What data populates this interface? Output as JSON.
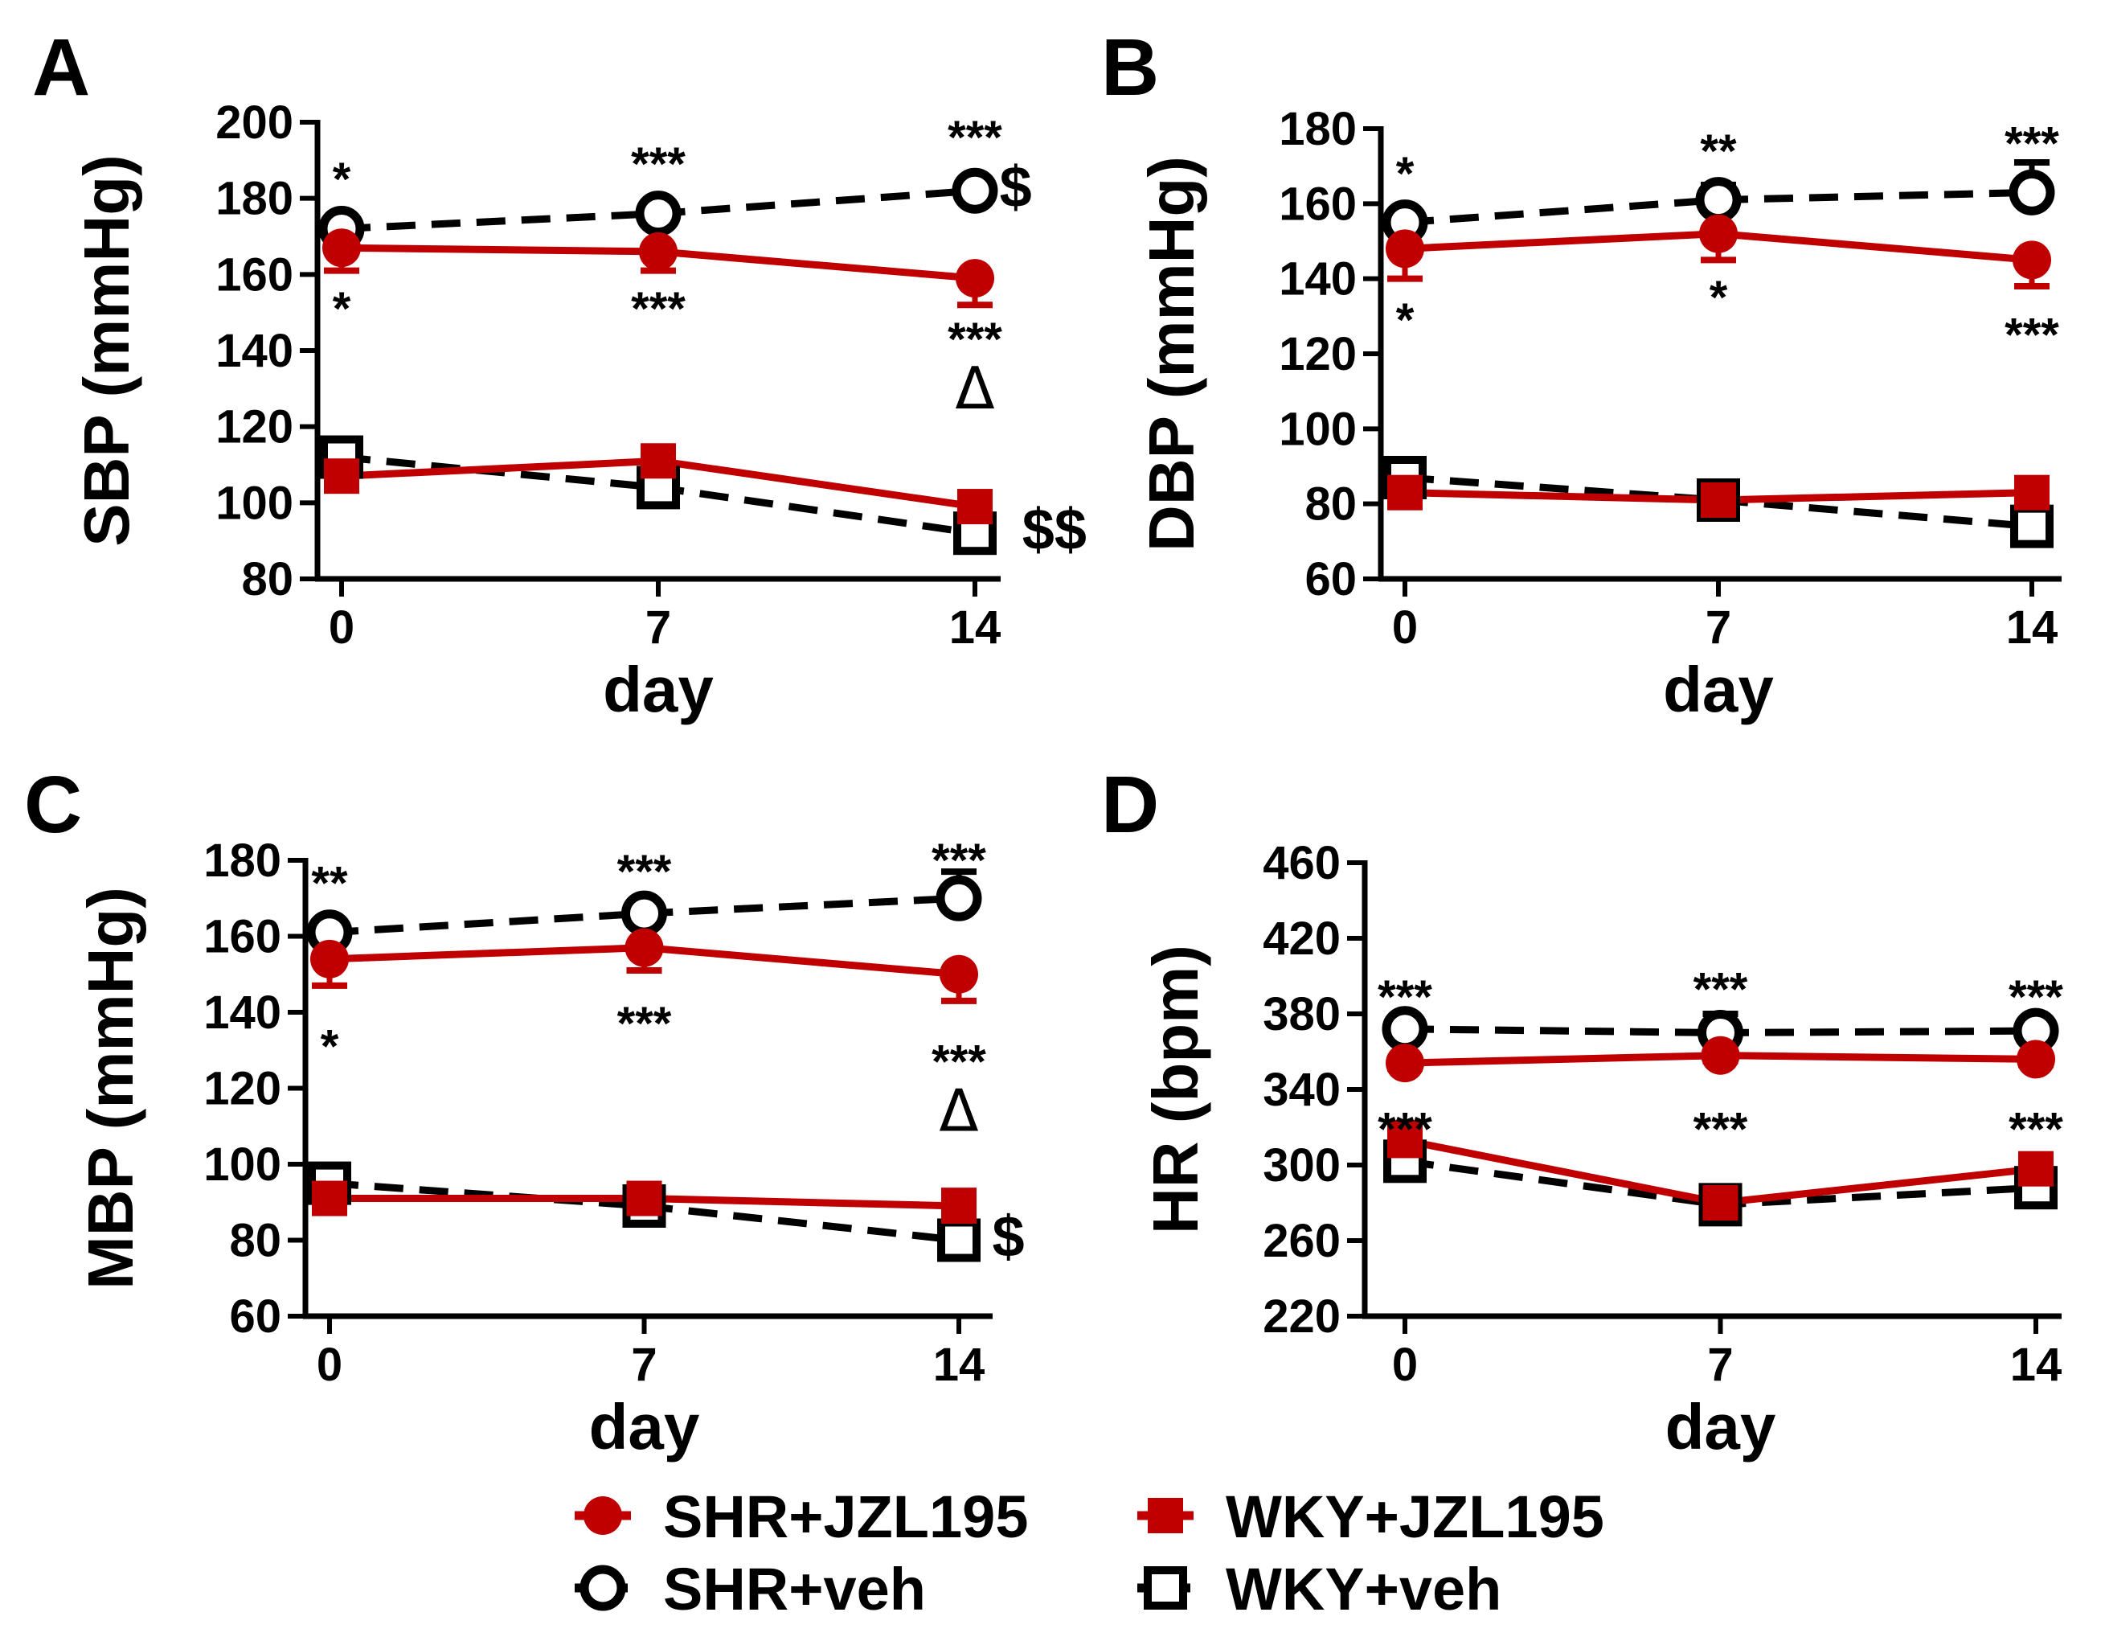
{
  "colors": {
    "jzl": "#c00000",
    "veh": "#000000"
  },
  "legend": [
    {
      "key": "shr_jzl",
      "label": "SHR+JZL195",
      "marker": "filled-circle",
      "color": "#c00000",
      "line": "solid"
    },
    {
      "key": "wky_jzl",
      "label": "WKY+JZL195",
      "marker": "filled-square",
      "color": "#c00000",
      "line": "solid"
    },
    {
      "key": "shr_veh",
      "label": "SHR+veh",
      "marker": "open-circle",
      "color": "#000000",
      "line": "dashed"
    },
    {
      "key": "wky_veh",
      "label": "WKY+veh",
      "marker": "open-square",
      "color": "#000000",
      "line": "dashed"
    }
  ],
  "chart_data": [
    {
      "panel": "A",
      "type": "line",
      "xlabel": "day",
      "ylabel": "SBP (mmHg)",
      "x": [
        0,
        7,
        14
      ],
      "x_ticks": [
        "0",
        "7",
        "14"
      ],
      "ylim": [
        80,
        200
      ],
      "y_ticks": [
        "80",
        "100",
        "120",
        "140",
        "160",
        "180",
        "200"
      ],
      "series": [
        {
          "name": "SHR+JZL195",
          "values": [
            167,
            166,
            159
          ],
          "err": [
            6,
            5,
            7
          ]
        },
        {
          "name": "WKY+JZL195",
          "values": [
            107,
            111,
            99
          ],
          "err": [
            3,
            3,
            3
          ]
        },
        {
          "name": "SHR+veh",
          "values": [
            172,
            176,
            182
          ],
          "err": [
            2,
            2,
            2
          ]
        },
        {
          "name": "WKY+veh",
          "values": [
            112,
            104,
            92
          ],
          "err": [
            2,
            2,
            2
          ]
        }
      ],
      "annotations": [
        {
          "text": "*",
          "x": 0,
          "y": 185
        },
        {
          "text": "*",
          "x": 0,
          "y": 151
        },
        {
          "text": "***",
          "x": 7,
          "y": 189
        },
        {
          "text": "***",
          "x": 7,
          "y": 151
        },
        {
          "text": "***",
          "x": 14,
          "y": 196
        },
        {
          "text": "***",
          "x": 14,
          "y": 143
        },
        {
          "text": "Δ",
          "x": 14,
          "y": 129
        },
        {
          "text": "$",
          "x": 14.9,
          "y": 182
        },
        {
          "text": "$$",
          "x": 15.4,
          "y": 92
        }
      ]
    },
    {
      "panel": "B",
      "type": "line",
      "xlabel": "day",
      "ylabel": "DBP (mmHg)",
      "x": [
        0,
        7,
        14
      ],
      "x_ticks": [
        "0",
        "7",
        "14"
      ],
      "ylim": [
        60,
        180
      ],
      "y_ticks": [
        "60",
        "80",
        "100",
        "120",
        "140",
        "160",
        "180"
      ],
      "series": [
        {
          "name": "SHR+JZL195",
          "values": [
            148,
            152,
            145
          ],
          "err": [
            8,
            7,
            7
          ]
        },
        {
          "name": "WKY+JZL195",
          "values": [
            83,
            81,
            83
          ],
          "err": [
            2,
            2,
            2
          ]
        },
        {
          "name": "SHR+veh",
          "values": [
            155,
            161,
            163
          ],
          "err": [
            2,
            4,
            8
          ]
        },
        {
          "name": "WKY+veh",
          "values": [
            87,
            81,
            74
          ],
          "err": [
            2,
            2,
            2
          ]
        }
      ],
      "annotations": [
        {
          "text": "*",
          "x": 0,
          "y": 168
        },
        {
          "text": "*",
          "x": 0,
          "y": 129
        },
        {
          "text": "**",
          "x": 7,
          "y": 174
        },
        {
          "text": "*",
          "x": 7,
          "y": 135
        },
        {
          "text": "***",
          "x": 14,
          "y": 176
        },
        {
          "text": "***",
          "x": 14,
          "y": 125
        }
      ]
    },
    {
      "panel": "C",
      "type": "line",
      "xlabel": "day",
      "ylabel": "MBP (mmHg)",
      "x": [
        0,
        7,
        14
      ],
      "x_ticks": [
        "0",
        "7",
        "14"
      ],
      "ylim": [
        60,
        180
      ],
      "y_ticks": [
        "60",
        "80",
        "100",
        "120",
        "140",
        "160",
        "180"
      ],
      "series": [
        {
          "name": "SHR+JZL195",
          "values": [
            154,
            157,
            150
          ],
          "err": [
            7,
            6,
            7
          ]
        },
        {
          "name": "WKY+JZL195",
          "values": [
            91,
            91,
            89
          ],
          "err": [
            2,
            2,
            4
          ]
        },
        {
          "name": "SHR+veh",
          "values": [
            161,
            166,
            170
          ],
          "err": [
            2,
            2,
            7
          ]
        },
        {
          "name": "WKY+veh",
          "values": [
            95,
            89,
            80
          ],
          "err": [
            2,
            2,
            2
          ]
        }
      ],
      "annotations": [
        {
          "text": "**",
          "x": 0,
          "y": 174
        },
        {
          "text": "*",
          "x": 0,
          "y": 131
        },
        {
          "text": "***",
          "x": 7,
          "y": 177
        },
        {
          "text": "***",
          "x": 7,
          "y": 137
        },
        {
          "text": "***",
          "x": 14,
          "y": 180
        },
        {
          "text": "***",
          "x": 14,
          "y": 127
        },
        {
          "text": "Δ",
          "x": 14,
          "y": 113
        },
        {
          "text": "$",
          "x": 15.1,
          "y": 80
        }
      ]
    },
    {
      "panel": "D",
      "type": "line",
      "xlabel": "day",
      "ylabel": "HR (bpm)",
      "x": [
        0,
        7,
        14
      ],
      "x_ticks": [
        "0",
        "7",
        "14"
      ],
      "ylim": [
        220,
        460
      ],
      "y_ticks": [
        "220",
        "260",
        "300",
        "340",
        "380",
        "420",
        "460"
      ],
      "series": [
        {
          "name": "SHR+JZL195",
          "values": [
            354,
            358,
            356
          ],
          "err": [
            3,
            3,
            3
          ]
        },
        {
          "name": "WKY+JZL195",
          "values": [
            313,
            280,
            298
          ],
          "err": [
            9,
            3,
            3
          ]
        },
        {
          "name": "SHR+veh",
          "values": [
            372,
            370,
            371
          ],
          "err": [
            2,
            10,
            2
          ]
        },
        {
          "name": "WKY+veh",
          "values": [
            302,
            279,
            288
          ],
          "err": [
            3,
            3,
            3
          ]
        }
      ],
      "annotations": [
        {
          "text": "***",
          "x": 0,
          "y": 389
        },
        {
          "text": "***",
          "x": 0,
          "y": 319
        },
        {
          "text": "***",
          "x": 7,
          "y": 393
        },
        {
          "text": "***",
          "x": 7,
          "y": 319
        },
        {
          "text": "***",
          "x": 14,
          "y": 389
        },
        {
          "text": "***",
          "x": 14,
          "y": 319
        }
      ]
    }
  ]
}
